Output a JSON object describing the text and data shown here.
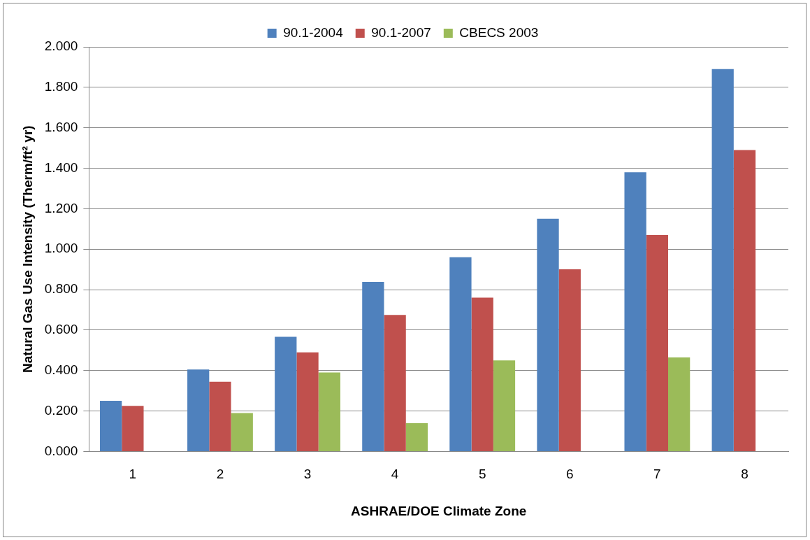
{
  "chart_data": {
    "type": "bar",
    "xlabel": "ASHRAE/DOE Climate Zone",
    "ylabel": "Natural Gas Use Intensity (Therm/ft² yr)",
    "categories": [
      "1",
      "2",
      "3",
      "4",
      "5",
      "6",
      "7",
      "8"
    ],
    "series": [
      {
        "name": "90.1-2004",
        "color": "#4f81bd",
        "values": [
          0.25,
          0.405,
          0.567,
          0.838,
          0.96,
          1.15,
          1.38,
          1.89
        ]
      },
      {
        "name": "90.1-2007",
        "color": "#c0504d",
        "values": [
          0.225,
          0.345,
          0.49,
          0.675,
          0.76,
          0.9,
          1.07,
          1.49
        ]
      },
      {
        "name": "CBECS 2003",
        "color": "#9bbb59",
        "values": [
          null,
          0.19,
          0.39,
          0.14,
          0.45,
          null,
          0.465,
          null
        ]
      }
    ],
    "ylim": [
      0,
      2
    ],
    "yticks": [
      {
        "value": 0,
        "label": "0.000"
      },
      {
        "value": 0.2,
        "label": "0.200"
      },
      {
        "value": 0.4,
        "label": "0.400"
      },
      {
        "value": 0.6,
        "label": "0.600"
      },
      {
        "value": 0.8,
        "label": "0.800"
      },
      {
        "value": 1,
        "label": "1.000"
      },
      {
        "value": 1.2,
        "label": "1.200"
      },
      {
        "value": 1.4,
        "label": "1.400"
      },
      {
        "value": 1.6,
        "label": "1.600"
      },
      {
        "value": 1.8,
        "label": "1.800"
      },
      {
        "value": 2,
        "label": "2.000"
      }
    ],
    "grid": "y",
    "legend": "top"
  }
}
